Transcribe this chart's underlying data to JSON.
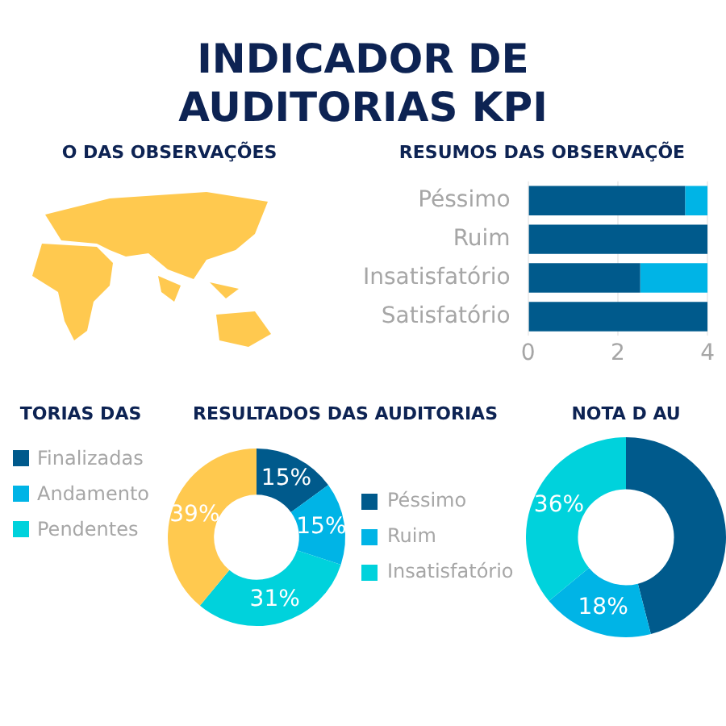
{
  "chart_data": [
    {
      "type": "other",
      "title": "INDICADOR DE AUDITORIAS KPI"
    },
    {
      "type": "other",
      "title": "O DAS OBSERVAÇÕES"
    },
    {
      "type": "bar",
      "title": "RESUMOS DAS OBSERVAÇÕE",
      "orientation": "horizontal",
      "stacked": true,
      "categories": [
        "Péssimo",
        "Ruim",
        "Insatisfatório",
        "Satisfatório"
      ],
      "series": [
        {
          "color": "#005a8c",
          "values": [
            3.5,
            4,
            2.5,
            4
          ]
        },
        {
          "color": "#00b4e6",
          "values": [
            0.5,
            0,
            1.5,
            0
          ]
        }
      ],
      "xlim": [
        0,
        4
      ],
      "xticks": [
        0,
        2,
        4
      ],
      "grid": "x"
    },
    {
      "type": "other",
      "title": "TORIAS DAS",
      "categories": [
        "Finalizadas",
        "Andamento",
        "Pendentes"
      ],
      "colors": [
        "#005a8c",
        "#00b4e6",
        "#00d2dc"
      ]
    },
    {
      "type": "donut",
      "title": "RESULTADOS DAS AUDITORIAS",
      "categories": [
        "Péssimo",
        "Ruim",
        "Insatisfatório",
        null
      ],
      "values": [
        15,
        15,
        31,
        39
      ],
      "value_labels": [
        "15%",
        "15%",
        "31%",
        "39%"
      ],
      "colors": [
        "#005a8c",
        "#00b4e6",
        "#00d2dc",
        "#ffc94f"
      ],
      "legend": "right"
    },
    {
      "type": "donut",
      "title": "NOTA D AU",
      "categories": [
        null,
        null,
        null
      ],
      "values": [
        46,
        18,
        36
      ],
      "value_labels": [
        null,
        "18%",
        "36%"
      ],
      "colors": [
        "#005a8c",
        "#00b4e6",
        "#00d2dc"
      ]
    }
  ]
}
